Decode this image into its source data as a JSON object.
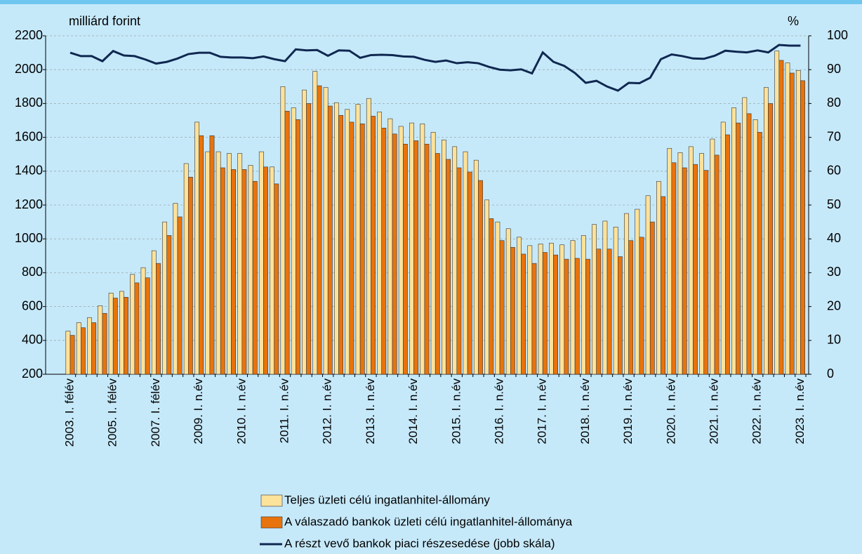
{
  "chart_data": {
    "type": "bar",
    "y_label": "milliárd forint",
    "y2_label": "%",
    "categories": [
      "2003. I. félév",
      null,
      null,
      null,
      "2005. I. félév",
      null,
      null,
      null,
      "2007. I. félév",
      null,
      null,
      null,
      "2009. I. n.év",
      null,
      null,
      null,
      "2010. I. n.év",
      null,
      null,
      null,
      "2011. I. n.év",
      null,
      null,
      null,
      "2012. I. n.év",
      null,
      null,
      null,
      "2013. I. n.év",
      null,
      null,
      null,
      "2014. I. n.év",
      null,
      null,
      null,
      "2015. I. n.év",
      null,
      null,
      null,
      "2016. I. n.év",
      null,
      null,
      null,
      "2017. I. n.év",
      null,
      null,
      null,
      "2018. I. n.év",
      null,
      null,
      null,
      "2019. I. n.év",
      null,
      null,
      null,
      "2020. I. n.év",
      null,
      null,
      null,
      "2021. I. n.év",
      null,
      null,
      null,
      "2022. I. n.év",
      null,
      null,
      null,
      "2023. I. n.év"
    ],
    "series": [
      {
        "name": "Teljes üzleti célú ingatlanhitel-állomány",
        "type": "bar",
        "color": "#fde29a",
        "values": [
          455,
          505,
          535,
          605,
          680,
          690,
          790,
          830,
          930,
          1100,
          1210,
          1445,
          1690,
          1515,
          1515,
          1505,
          1505,
          1435,
          1515,
          1425,
          1900,
          1775,
          1880,
          1990,
          1895,
          1805,
          1765,
          1795,
          1830,
          1750,
          1710,
          1665,
          1685,
          1680,
          1630,
          1585,
          1545,
          1515,
          1465,
          1230,
          1100,
          1060,
          1010,
          960,
          970,
          975,
          965,
          990,
          1020,
          1085,
          1105,
          1070,
          1150,
          1175,
          1255,
          1340,
          1535,
          1510,
          1545,
          1505,
          1590,
          1690,
          1775,
          1835,
          1705,
          1895,
          2110,
          2040,
          1995
        ]
      },
      {
        "name": "A válaszadó bankok üzleti célú ingatlanhitel-állománya",
        "type": "bar",
        "color": "#e8730c",
        "values": [
          430,
          475,
          505,
          560,
          650,
          655,
          740,
          770,
          855,
          1020,
          1130,
          1365,
          1610,
          1610,
          1420,
          1410,
          1410,
          1340,
          1425,
          1325,
          1755,
          1705,
          1800,
          1905,
          1785,
          1730,
          1690,
          1680,
          1725,
          1655,
          1620,
          1560,
          1580,
          1560,
          1505,
          1470,
          1420,
          1395,
          1345,
          1120,
          990,
          950,
          910,
          855,
          920,
          905,
          880,
          885,
          880,
          940,
          940,
          895,
          990,
          1010,
          1100,
          1250,
          1450,
          1420,
          1440,
          1405,
          1495,
          1615,
          1685,
          1740,
          1630,
          1800,
          2055,
          1980,
          1935
        ]
      },
      {
        "name": "A részt vevő bankok piaci részesedése (jobb skála)",
        "type": "line",
        "axis": "y2",
        "color": "#0f2850",
        "values": [
          95,
          94,
          94,
          92.5,
          95.5,
          94.2,
          94,
          93,
          91.8,
          92.3,
          93.3,
          94.6,
          95,
          95,
          93.8,
          93.6,
          93.6,
          93.4,
          93.9,
          93.1,
          92.5,
          96,
          95.7,
          95.8,
          94.1,
          95.7,
          95.6,
          93.5,
          94.3,
          94.4,
          94.3,
          93.9,
          93.8,
          92.9,
          92.3,
          92.7,
          91.9,
          92.2,
          91.9,
          90.8,
          90,
          89.8,
          90.1,
          88.9,
          95.1,
          92.3,
          91.1,
          89,
          86.1,
          86.7,
          85,
          83.8,
          86.1,
          86,
          87.6,
          93.1,
          94.5,
          94,
          93.3,
          93.2,
          94.1,
          95.6,
          95.3,
          95.1,
          95.7,
          95.1,
          97.3,
          97.1,
          97.1
        ]
      }
    ],
    "ylim": [
      200,
      2200
    ],
    "yticks": [
      200,
      400,
      600,
      800,
      1000,
      1200,
      1400,
      1600,
      1800,
      2000,
      2200
    ],
    "y2lim": [
      0,
      100
    ],
    "y2ticks": [
      0,
      10,
      20,
      30,
      40,
      50,
      60,
      70,
      80,
      90,
      100
    ],
    "grid": true
  }
}
